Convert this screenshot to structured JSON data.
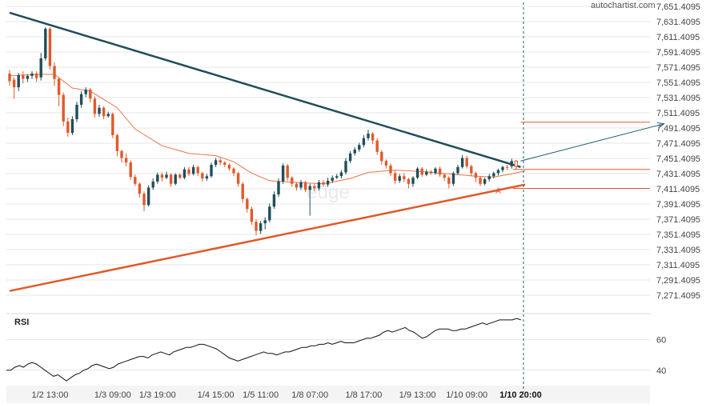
{
  "brand": "autochartist.com",
  "watermark": "edge",
  "colors": {
    "up": "#1f4e5a",
    "down": "#e05a2a",
    "resistance": "#1f4e5a",
    "support": "#e05a2a",
    "ma": "#e8744a",
    "rsi": "#111111",
    "grid": "#e6e6e6",
    "axis_text": "#444444",
    "panel_bg": "#f4f4f4",
    "projection": "#1f5f6e",
    "target": "#e05a2a"
  },
  "chart_data": [
    {
      "type": "candlestick",
      "ylim": [
        7251.4095,
        7651.4095
      ],
      "y_ticks": [
        "7,651.4095",
        "7,631.4095",
        "7,611.4095",
        "7,591.4095",
        "7,571.4095",
        "7,551.4095",
        "7,531.4095",
        "7,511.4095",
        "7,491.4095",
        "7,471.4095",
        "7,451.4095",
        "7,431.4095",
        "7,411.4095",
        "7,391.4095",
        "7,371.4095",
        "7,351.4095",
        "7,331.4095",
        "7,311.4095",
        "7,291.4095",
        "7,271.4095"
      ],
      "x_ticks": [
        "1/2 13:00",
        "1/3 09:00",
        "1/3 19:00",
        "1/4 15:00",
        "1/5 11:00",
        "1/8 07:00",
        "1/8 17:00",
        "1/9 13:00",
        "1/10 09:00",
        "1/10 20:00"
      ],
      "x_tick_index": [
        9,
        23,
        33,
        46,
        56,
        67,
        79,
        91,
        102,
        114
      ],
      "candles": [
        [
          7563,
          7553,
          7568,
          7547
        ],
        [
          7555,
          7545,
          7558,
          7530
        ],
        [
          7545,
          7561,
          7564,
          7540
        ],
        [
          7561,
          7556,
          7566,
          7550
        ],
        [
          7556,
          7560,
          7562,
          7552
        ],
        [
          7560,
          7563,
          7566,
          7556
        ],
        [
          7563,
          7557,
          7566,
          7552
        ],
        [
          7558,
          7583,
          7590,
          7554
        ],
        [
          7583,
          7622,
          7624,
          7580
        ],
        [
          7622,
          7573,
          7624,
          7568
        ],
        [
          7573,
          7556,
          7578,
          7547
        ],
        [
          7556,
          7535,
          7558,
          7520
        ],
        [
          7535,
          7500,
          7538,
          7494
        ],
        [
          7500,
          7485,
          7505,
          7480
        ],
        [
          7485,
          7503,
          7507,
          7482
        ],
        [
          7503,
          7522,
          7526,
          7499
        ],
        [
          7522,
          7536,
          7540,
          7518
        ],
        [
          7536,
          7542,
          7545,
          7532
        ],
        [
          7542,
          7530,
          7544,
          7525
        ],
        [
          7530,
          7510,
          7533,
          7505
        ],
        [
          7510,
          7518,
          7522,
          7506
        ],
        [
          7518,
          7507,
          7520,
          7503
        ],
        [
          7507,
          7510,
          7513,
          7505
        ],
        [
          7510,
          7482,
          7512,
          7478
        ],
        [
          7482,
          7461,
          7484,
          7454
        ],
        [
          7461,
          7452,
          7463,
          7446
        ],
        [
          7452,
          7446,
          7458,
          7441
        ],
        [
          7446,
          7427,
          7449,
          7423
        ],
        [
          7427,
          7418,
          7430,
          7415
        ],
        [
          7418,
          7405,
          7420,
          7400
        ],
        [
          7405,
          7390,
          7408,
          7382
        ],
        [
          7390,
          7413,
          7416,
          7388
        ],
        [
          7413,
          7421,
          7425,
          7410
        ],
        [
          7421,
          7430,
          7433,
          7418
        ],
        [
          7430,
          7426,
          7433,
          7421
        ],
        [
          7426,
          7430,
          7434,
          7424
        ],
        [
          7430,
          7418,
          7432,
          7414
        ],
        [
          7418,
          7430,
          7432,
          7416
        ],
        [
          7430,
          7426,
          7432,
          7424
        ],
        [
          7426,
          7437,
          7440,
          7424
        ],
        [
          7437,
          7431,
          7440,
          7428
        ],
        [
          7431,
          7440,
          7443,
          7429
        ],
        [
          7440,
          7432,
          7442,
          7428
        ],
        [
          7432,
          7425,
          7434,
          7421
        ],
        [
          7425,
          7428,
          7431,
          7422
        ],
        [
          7428,
          7443,
          7446,
          7426
        ],
        [
          7443,
          7449,
          7452,
          7440
        ],
        [
          7449,
          7446,
          7452,
          7443
        ],
        [
          7446,
          7443,
          7448,
          7440
        ],
        [
          7443,
          7438,
          7445,
          7435
        ],
        [
          7438,
          7432,
          7440,
          7428
        ],
        [
          7432,
          7418,
          7434,
          7414
        ],
        [
          7418,
          7398,
          7420,
          7393
        ],
        [
          7398,
          7385,
          7400,
          7380
        ],
        [
          7385,
          7368,
          7388,
          7364
        ],
        [
          7368,
          7356,
          7371,
          7350
        ],
        [
          7356,
          7366,
          7369,
          7352
        ],
        [
          7366,
          7370,
          7374,
          7358
        ],
        [
          7370,
          7388,
          7392,
          7367
        ],
        [
          7388,
          7404,
          7408,
          7385
        ],
        [
          7404,
          7421,
          7425,
          7401
        ],
        [
          7421,
          7442,
          7445,
          7418
        ],
        [
          7442,
          7426,
          7444,
          7422
        ],
        [
          7426,
          7418,
          7428,
          7414
        ],
        [
          7418,
          7413,
          7420,
          7409
        ],
        [
          7413,
          7420,
          7423,
          7410
        ],
        [
          7420,
          7410,
          7422,
          7407
        ],
        [
          7410,
          7415,
          7418,
          7376
        ],
        [
          7415,
          7412,
          7418,
          7408
        ],
        [
          7412,
          7420,
          7423,
          7409
        ],
        [
          7420,
          7417,
          7423,
          7414
        ],
        [
          7417,
          7422,
          7426,
          7414
        ],
        [
          7422,
          7426,
          7429,
          7419
        ],
        [
          7426,
          7428,
          7431,
          7424
        ],
        [
          7428,
          7433,
          7436,
          7425
        ],
        [
          7433,
          7448,
          7452,
          7430
        ],
        [
          7448,
          7458,
          7461,
          7445
        ],
        [
          7458,
          7463,
          7466,
          7455
        ],
        [
          7463,
          7469,
          7472,
          7460
        ],
        [
          7469,
          7478,
          7482,
          7466
        ],
        [
          7478,
          7484,
          7489,
          7475
        ],
        [
          7484,
          7475,
          7486,
          7470
        ],
        [
          7475,
          7460,
          7478,
          7456
        ],
        [
          7460,
          7448,
          7462,
          7443
        ],
        [
          7448,
          7442,
          7450,
          7438
        ],
        [
          7442,
          7432,
          7445,
          7428
        ],
        [
          7432,
          7422,
          7435,
          7418
        ],
        [
          7422,
          7428,
          7431,
          7419
        ],
        [
          7428,
          7424,
          7432,
          7420
        ],
        [
          7424,
          7418,
          7426,
          7412
        ],
        [
          7418,
          7426,
          7428,
          7414
        ],
        [
          7426,
          7438,
          7440,
          7424
        ],
        [
          7438,
          7430,
          7440,
          7427
        ],
        [
          7430,
          7434,
          7437,
          7428
        ],
        [
          7434,
          7432,
          7436,
          7430
        ],
        [
          7432,
          7438,
          7440,
          7430
        ],
        [
          7438,
          7430,
          7441,
          7427
        ],
        [
          7430,
          7426,
          7432,
          7422
        ],
        [
          7426,
          7418,
          7428,
          7412
        ],
        [
          7418,
          7432,
          7434,
          7415
        ],
        [
          7432,
          7440,
          7443,
          7430
        ],
        [
          7440,
          7452,
          7456,
          7438
        ],
        [
          7452,
          7441,
          7455,
          7438
        ],
        [
          7441,
          7432,
          7443,
          7428
        ],
        [
          7432,
          7426,
          7434,
          7420
        ],
        [
          7426,
          7418,
          7428,
          7415
        ],
        [
          7418,
          7424,
          7426,
          7416
        ],
        [
          7424,
          7428,
          7431,
          7421
        ],
        [
          7428,
          7432,
          7434,
          7425
        ],
        [
          7432,
          7436,
          7438,
          7429
        ],
        [
          7436,
          7440,
          7442,
          7433
        ],
        [
          7440,
          7439,
          7443,
          7436
        ],
        [
          7441,
          7448,
          7451,
          7438
        ],
        [
          7448,
          7441,
          7449,
          7437
        ]
      ],
      "moving_average": [
        [
          0,
          7560
        ],
        [
          6,
          7562
        ],
        [
          10,
          7562
        ],
        [
          14,
          7544
        ],
        [
          18,
          7540
        ],
        [
          24,
          7518
        ],
        [
          28,
          7490
        ],
        [
          34,
          7468
        ],
        [
          40,
          7458
        ],
        [
          46,
          7455
        ],
        [
          50,
          7447
        ],
        [
          54,
          7432
        ],
        [
          58,
          7422
        ],
        [
          63,
          7420
        ],
        [
          70,
          7418
        ],
        [
          76,
          7425
        ],
        [
          80,
          7433
        ],
        [
          86,
          7436
        ],
        [
          92,
          7434
        ],
        [
          98,
          7431
        ],
        [
          104,
          7428
        ],
        [
          108,
          7427
        ],
        [
          112,
          7431
        ],
        [
          115,
          7435
        ]
      ],
      "resistance_line": [
        [
          0,
          7643
        ],
        [
          114,
          7440
        ]
      ],
      "support_line": [
        [
          0,
          7277
        ],
        [
          115,
          7417
        ]
      ],
      "level_lines": [
        7437,
        7412,
        7499
      ],
      "projection": [
        [
          114,
          7448
        ],
        [
          146,
          7497
        ]
      ],
      "annotation": {
        "label": "A",
        "index": 109,
        "value": 7405
      }
    },
    {
      "type": "line",
      "title": "RSI",
      "y_ticks": [
        "60",
        "40"
      ],
      "y_tick_values": [
        60,
        40
      ],
      "ylim": [
        32,
        74
      ],
      "values": [
        40,
        40,
        42,
        43,
        42,
        44,
        45,
        44,
        42,
        40,
        38,
        36,
        37,
        35,
        33,
        35,
        37,
        38,
        40,
        41,
        43,
        44,
        43,
        42,
        41,
        42,
        44,
        45,
        46,
        47,
        48,
        49,
        49,
        48,
        50,
        51,
        52,
        51,
        50,
        52,
        53,
        54,
        55,
        55,
        56,
        57,
        57,
        56,
        55,
        54,
        52,
        50,
        48,
        47,
        46,
        47,
        48,
        49,
        50,
        51,
        52,
        51,
        51,
        50,
        51,
        52,
        52,
        53,
        54,
        55,
        55,
        56,
        56,
        57,
        57,
        58,
        57,
        58,
        59,
        58,
        58,
        58,
        59,
        60,
        61,
        61,
        62,
        63,
        65,
        66,
        65,
        66,
        67,
        68,
        66,
        65,
        63,
        61,
        62,
        64,
        66,
        67,
        67,
        67,
        66,
        66,
        67,
        67,
        68,
        69,
        70,
        71,
        70,
        71,
        72,
        73,
        73,
        73,
        73,
        74,
        73
      ]
    }
  ]
}
